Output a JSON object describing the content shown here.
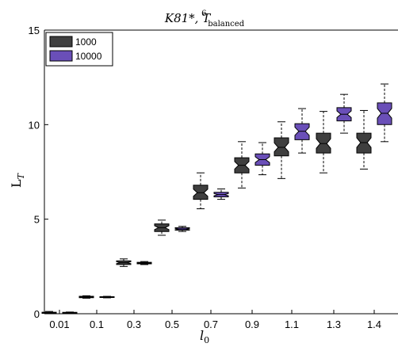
{
  "chart_data": {
    "type": "box",
    "title": "K81*, T",
    "title_superscript": "6",
    "title_subscript": "balanced",
    "xlabel": "l",
    "xlabel_subscript": "0",
    "ylabel": "L",
    "ylabel_subscript": "T",
    "categories": [
      "0.01",
      "0.1",
      "0.3",
      "0.5",
      "0.7",
      "0.9",
      "1.1",
      "1.3",
      "1.4"
    ],
    "ylim": [
      0,
      15
    ],
    "yticks": [
      "0",
      "5",
      "10",
      "15"
    ],
    "legend_position": "top-left",
    "series": [
      {
        "name": "1000",
        "color": "#3f3f3f",
        "boxes": [
          {
            "q1": 0.02,
            "median": 0.05,
            "q3": 0.08,
            "whisker_low": 0.0,
            "whisker_high": 0.12
          },
          {
            "q1": 0.85,
            "median": 0.88,
            "q3": 0.92,
            "whisker_low": 0.82,
            "whisker_high": 0.95
          },
          {
            "q1": 2.6,
            "median": 2.7,
            "q3": 2.8,
            "whisker_low": 2.5,
            "whisker_high": 2.9
          },
          {
            "q1": 4.35,
            "median": 4.55,
            "q3": 4.75,
            "whisker_low": 4.15,
            "whisker_high": 4.95
          },
          {
            "q1": 6.05,
            "median": 6.4,
            "q3": 6.8,
            "whisker_low": 5.55,
            "whisker_high": 7.45
          },
          {
            "q1": 7.45,
            "median": 7.85,
            "q3": 8.25,
            "whisker_low": 6.65,
            "whisker_high": 9.1
          },
          {
            "q1": 8.35,
            "median": 8.8,
            "q3": 9.3,
            "whisker_low": 7.15,
            "whisker_high": 10.15
          },
          {
            "q1": 8.5,
            "median": 9.0,
            "q3": 9.55,
            "whisker_low": 7.45,
            "whisker_high": 10.7
          },
          {
            "q1": 8.5,
            "median": 9.05,
            "q3": 9.55,
            "whisker_low": 7.65,
            "whisker_high": 10.75
          }
        ]
      },
      {
        "name": "10000",
        "color": "#6a4fb8",
        "boxes": [
          {
            "q1": 0.03,
            "median": 0.05,
            "q3": 0.07,
            "whisker_low": 0.01,
            "whisker_high": 0.09
          },
          {
            "q1": 0.86,
            "median": 0.88,
            "q3": 0.9,
            "whisker_low": 0.84,
            "whisker_high": 0.92
          },
          {
            "q1": 2.64,
            "median": 2.68,
            "q3": 2.72,
            "whisker_low": 2.6,
            "whisker_high": 2.76
          },
          {
            "q1": 4.42,
            "median": 4.48,
            "q3": 4.55,
            "whisker_low": 4.35,
            "whisker_high": 4.62
          },
          {
            "q1": 6.18,
            "median": 6.3,
            "q3": 6.42,
            "whisker_low": 6.05,
            "whisker_high": 6.6
          },
          {
            "q1": 7.85,
            "median": 8.15,
            "q3": 8.45,
            "whisker_low": 7.35,
            "whisker_high": 9.05
          },
          {
            "q1": 9.2,
            "median": 9.65,
            "q3": 10.05,
            "whisker_low": 8.5,
            "whisker_high": 10.85
          },
          {
            "q1": 10.2,
            "median": 10.55,
            "q3": 10.9,
            "whisker_low": 9.55,
            "whisker_high": 11.6
          },
          {
            "q1": 10.0,
            "median": 10.6,
            "q3": 11.15,
            "whisker_low": 9.1,
            "whisker_high": 12.15
          }
        ]
      }
    ]
  }
}
